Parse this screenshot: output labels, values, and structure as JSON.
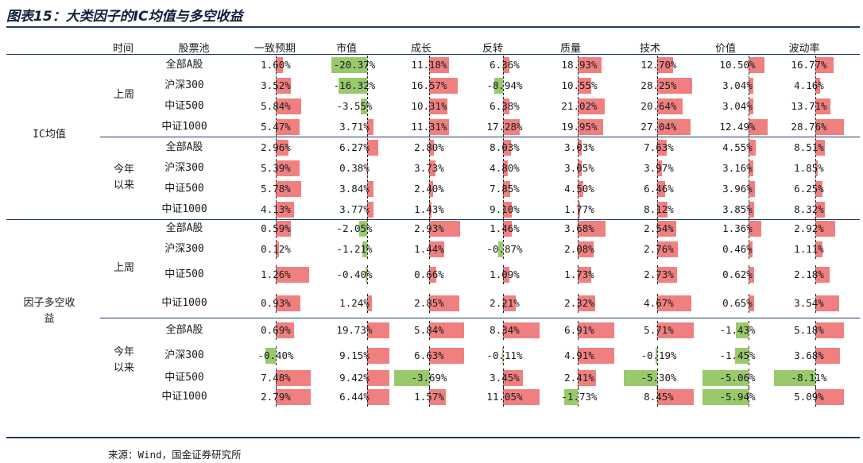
{
  "title": "图表15：大类因子的IC均值与多空收益",
  "source": "来源：Wind，国金证券研究所",
  "headers": [
    "时间",
    "股票池",
    "一致预期",
    "市值",
    "成长",
    "反转",
    "质量",
    "技术",
    "价值",
    "波动率"
  ],
  "sections": [
    {
      "label": "IC均值",
      "groups": [
        {
          "label": "上周",
          "rows": [
            {
              "pool": "全部A股",
              "values": [
                "1.60%",
                "-20.37%",
                "11.18%",
                "6.36%",
                "18.93%",
                "12.70%",
                "10.50%",
                "16.77%"
              ]
            },
            {
              "pool": "沪深300",
              "values": [
                "3.52%",
                "-16.32%",
                "16.57%",
                "-8.94%",
                "10.55%",
                "28.25%",
                "3.04%",
                "4.16%"
              ]
            },
            {
              "pool": "中证500",
              "values": [
                "5.84%",
                "-3.55%",
                "10.31%",
                "6.38%",
                "21.02%",
                "20.64%",
                "3.04%",
                "13.71%"
              ]
            },
            {
              "pool": "中证1000",
              "values": [
                "5.47%",
                "3.71%",
                "11.31%",
                "17.28%",
                "19.95%",
                "27.04%",
                "12.49%",
                "28.76%"
              ]
            }
          ]
        },
        {
          "label": "今年\n以来",
          "rows": [
            {
              "pool": "全部A股",
              "values": [
                "2.96%",
                "6.27%",
                "2.80%",
                "8.03%",
                "3.03%",
                "7.63%",
                "4.55%",
                "8.51%"
              ]
            },
            {
              "pool": "沪深300",
              "values": [
                "5.39%",
                "0.38%",
                "3.73%",
                "4.80%",
                "3.05%",
                "3.97%",
                "3.16%",
                "1.85%"
              ]
            },
            {
              "pool": "中证500",
              "values": [
                "5.78%",
                "3.84%",
                "2.40%",
                "7.85%",
                "4.50%",
                "6.46%",
                "3.96%",
                "6.25%"
              ]
            },
            {
              "pool": "中证1000",
              "values": [
                "4.13%",
                "3.77%",
                "1.43%",
                "9.10%",
                "1.77%",
                "8.12%",
                "3.85%",
                "8.32%"
              ]
            }
          ]
        }
      ]
    },
    {
      "label": "因子多空收\n益",
      "groups": [
        {
          "label": "上周",
          "rows": [
            {
              "pool": "全部A股",
              "values": [
                "0.59%",
                "-2.05%",
                "2.93%",
                "1.46%",
                "3.68%",
                "2.54%",
                "1.36%",
                "2.92%"
              ]
            },
            {
              "pool": "沪深300",
              "values": [
                "0.12%",
                "-1.21%",
                "1.44%",
                "-0.87%",
                "2.08%",
                "2.76%",
                "0.46%",
                "1.11%"
              ]
            },
            {
              "pool": "中证500",
              "values": [
                "1.26%",
                "-0.40%",
                "0.66%",
                "1.09%",
                "1.73%",
                "2.73%",
                "0.62%",
                "2.18%"
              ]
            },
            {
              "pool": "中证1000",
              "values": [
                "0.93%",
                "1.24%",
                "2.85%",
                "2.21%",
                "2.32%",
                "4.67%",
                "0.65%",
                "3.54%"
              ]
            }
          ]
        },
        {
          "label": "今年\n以来",
          "rows": [
            {
              "pool": "全部A股",
              "values": [
                "0.69%",
                "19.73%",
                "5.84%",
                "8.34%",
                "6.91%",
                "5.71%",
                "-1.43%",
                "5.18%"
              ]
            },
            {
              "pool": "沪深300",
              "values": [
                "-0.40%",
                "9.15%",
                "6.63%",
                "-0.11%",
                "4.91%",
                "-0.19%",
                "-1.45%",
                "3.68%"
              ]
            },
            {
              "pool": "中证500",
              "values": [
                "7.48%",
                "9.42%",
                "-3.69%",
                "3.45%",
                "2.41%",
                "-5.30%",
                "-5.06%",
                "-8.11%"
              ]
            },
            {
              "pool": "中证1000",
              "values": [
                "2.79%",
                "6.44%",
                "1.57%",
                "11.05%",
                "-1.73%",
                "8.45%",
                "-5.94%",
                "5.09%"
              ]
            }
          ]
        }
      ]
    }
  ],
  "colors": {
    "positive": "#f08080",
    "negative": "#99c96b",
    "rule": "#1f3b63"
  }
}
